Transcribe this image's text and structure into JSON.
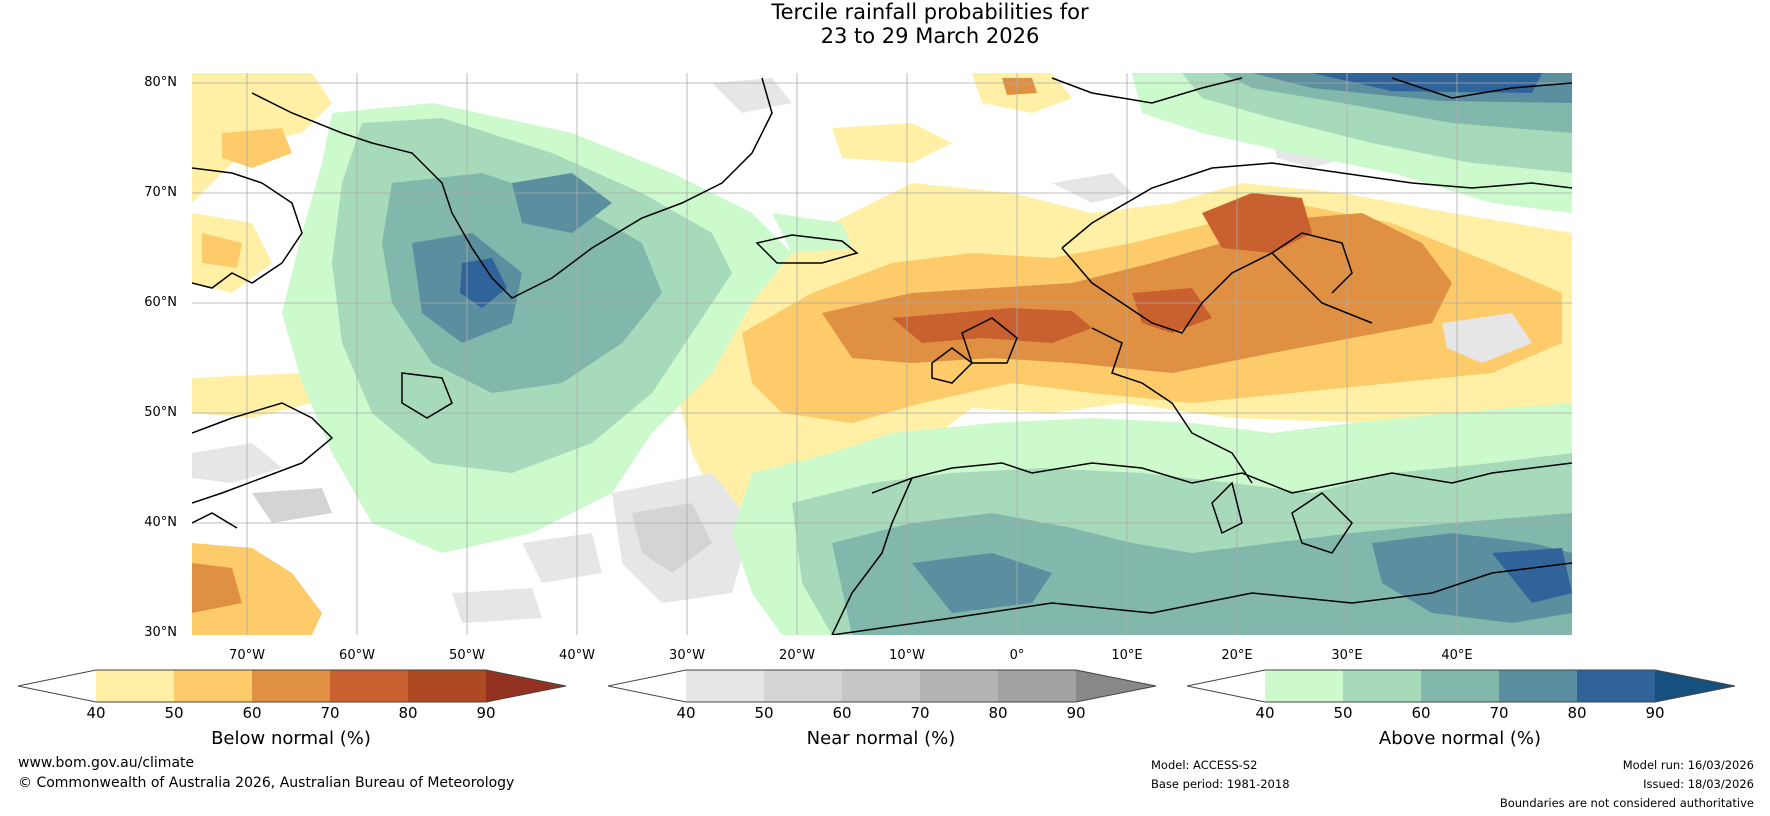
{
  "title": {
    "line1": "Tercile rainfall probabilities for",
    "line2": "23 to 29 March 2026"
  },
  "axes": {
    "lat_labels": [
      "80°N",
      "70°N",
      "60°N",
      "50°N",
      "40°N",
      "30°N"
    ],
    "lon_labels": [
      "70°W",
      "60°W",
      "50°W",
      "40°W",
      "30°W",
      "20°W",
      "10°W",
      "0°",
      "10°E",
      "20°E",
      "30°E",
      "40°E"
    ]
  },
  "colorbars": [
    {
      "title": "Below normal (%)",
      "ticks": [
        "40",
        "50",
        "60",
        "70",
        "80",
        "90"
      ],
      "low_color": "#ffffff",
      "colors": [
        "#fff0a6",
        "#fdcb6a",
        "#df9042",
        "#c96030",
        "#ad4a22"
      ],
      "high_color": "#943222"
    },
    {
      "title": "Near normal (%)",
      "ticks": [
        "40",
        "50",
        "60",
        "70",
        "80",
        "90"
      ],
      "low_color": "#ffffff",
      "colors": [
        "#e6e6e6",
        "#d4d4d4",
        "#c6c6c6",
        "#b4b4b4",
        "#a2a2a2"
      ],
      "high_color": "#888888"
    },
    {
      "title": "Above normal (%)",
      "ticks": [
        "40",
        "50",
        "60",
        "70",
        "80",
        "90"
      ],
      "low_color": "#ffffff",
      "colors": [
        "#ccfacc",
        "#a6dabb",
        "#82b8ab",
        "#5b8fa0",
        "#30639a"
      ],
      "high_color": "#15507f"
    }
  ],
  "footer": {
    "website": "www.bom.gov.au/climate",
    "copyright": "© Commonwealth of Australia 2026, Australian Bureau of Meteorology",
    "model": "Model: ACCESS-S2",
    "base_period": "Base period: 1981-2018",
    "model_run": "Model run: 16/03/2026",
    "issued": "Issued: 18/03/2026",
    "disclaimer": "Boundaries are not considered authoritative"
  }
}
